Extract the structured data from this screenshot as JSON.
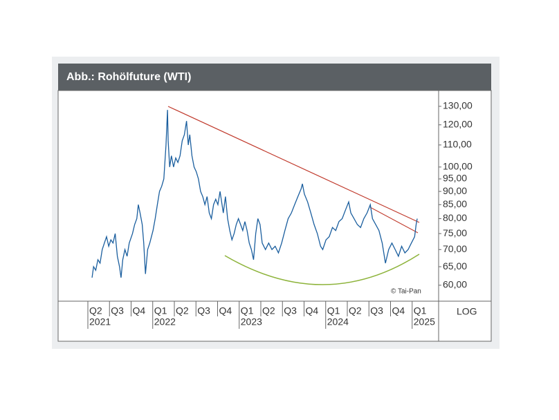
{
  "chart_data": {
    "type": "line",
    "title": "Abb.: Rohölfuture (WTI)",
    "source": "© Tai-Pan",
    "scale_label": "LOG",
    "log_scale": true,
    "grid": false,
    "xlim": [
      -1.44,
      16.16
    ],
    "xticks": [
      {
        "value": 0,
        "label": "Q2"
      },
      {
        "value": 1,
        "label": "Q3"
      },
      {
        "value": 2,
        "label": "Q4"
      },
      {
        "value": 3,
        "label": "Q1"
      },
      {
        "value": 4,
        "label": "Q2"
      },
      {
        "value": 5,
        "label": "Q3"
      },
      {
        "value": 6,
        "label": "Q4"
      },
      {
        "value": 7,
        "label": "Q1"
      },
      {
        "value": 8,
        "label": "Q2"
      },
      {
        "value": 9,
        "label": "Q3"
      },
      {
        "value": 10,
        "label": "Q4"
      },
      {
        "value": 11,
        "label": "Q1"
      },
      {
        "value": 12,
        "label": "Q2"
      },
      {
        "value": 13,
        "label": "Q3"
      },
      {
        "value": 14,
        "label": "Q4"
      },
      {
        "value": 15,
        "label": "Q1"
      }
    ],
    "years": [
      {
        "value": 0,
        "label": "2021"
      },
      {
        "value": 3,
        "label": "2022"
      },
      {
        "value": 7,
        "label": "2023"
      },
      {
        "value": 11,
        "label": "2024"
      },
      {
        "value": 15,
        "label": "2025"
      }
    ],
    "ylim": [
      56,
      139.2
    ],
    "yticks": [
      {
        "value": 60,
        "label": "60,00"
      },
      {
        "value": 65,
        "label": "65,00"
      },
      {
        "value": 70,
        "label": "70,00"
      },
      {
        "value": 75,
        "label": "75,00"
      },
      {
        "value": 80,
        "label": "80,00"
      },
      {
        "value": 85,
        "label": "85,00"
      },
      {
        "value": 90,
        "label": "90,00"
      },
      {
        "value": 95,
        "label": "95,00"
      },
      {
        "value": 100,
        "label": "100,00"
      },
      {
        "value": 110,
        "label": "110,00"
      },
      {
        "value": 120,
        "label": "120,00"
      },
      {
        "value": 130,
        "label": "130,00"
      }
    ],
    "x": [
      0.13,
      0.2,
      0.3,
      0.4,
      0.5,
      0.6,
      0.7,
      0.8,
      0.9,
      1.0,
      1.1,
      1.2,
      1.3,
      1.4,
      1.47,
      1.55,
      1.65,
      1.75,
      1.85,
      2.0,
      2.1,
      2.2,
      2.27,
      2.35,
      2.45,
      2.52,
      2.6,
      2.7,
      2.8,
      2.95,
      3.05,
      3.15,
      3.25,
      3.35,
      3.45,
      3.55,
      3.62,
      3.65,
      3.72,
      3.8,
      3.9,
      4.0,
      4.1,
      4.2,
      4.3,
      4.4,
      4.5,
      4.58,
      4.65,
      4.75,
      4.85,
      4.95,
      5.05,
      5.15,
      5.25,
      5.35,
      5.45,
      5.55,
      5.65,
      5.75,
      5.85,
      5.95,
      6.05,
      6.2,
      6.3,
      6.4,
      6.5,
      6.6,
      6.7,
      6.8,
      6.9,
      7.0,
      7.1,
      7.2,
      7.3,
      7.4,
      7.5,
      7.6,
      7.7,
      7.8,
      7.9,
      8.0,
      8.15,
      8.3,
      8.45,
      8.6,
      8.75,
      8.9,
      9.05,
      9.2,
      9.35,
      9.5,
      9.65,
      9.8,
      9.86,
      9.95,
      10.1,
      10.25,
      10.4,
      10.55,
      10.7,
      10.8,
      10.95,
      11.1,
      11.25,
      11.4,
      11.55,
      11.7,
      11.85,
      12.0,
      12.1,
      12.25,
      12.4,
      12.55,
      12.7,
      12.85,
      13.0,
      13.1,
      13.25,
      13.4,
      13.55,
      13.7,
      13.85,
      14.0,
      14.15,
      14.3,
      14.45,
      14.6,
      14.75,
      14.9,
      15.05,
      15.12,
      15.17
    ],
    "series": [
      {
        "name": "WTI",
        "color": "#1a5e9e",
        "values": [
          62,
          65,
          64,
          67,
          66,
          70,
          72,
          74,
          71,
          73,
          72,
          75,
          68,
          65,
          62,
          67,
          70,
          68,
          72,
          75,
          78,
          80,
          85,
          82,
          78,
          72,
          63,
          70,
          72,
          76,
          80,
          85,
          90,
          92,
          95,
          110,
          128,
          112,
          100,
          105,
          100,
          104,
          102,
          105,
          112,
          115,
          122,
          110,
          115,
          105,
          100,
          98,
          95,
          90,
          88,
          85,
          88,
          82,
          80,
          85,
          87,
          85,
          90,
          82,
          88,
          80,
          76,
          73,
          75,
          78,
          80,
          78,
          76,
          79,
          76,
          72,
          70,
          67,
          75,
          80,
          78,
          72,
          70,
          72,
          70,
          71,
          69,
          72,
          76,
          80,
          82,
          85,
          88,
          91,
          93,
          89,
          86,
          82,
          78,
          75,
          71,
          70,
          73,
          74,
          77,
          76,
          79,
          80,
          83,
          86,
          82,
          80,
          78,
          77,
          80,
          82,
          85,
          80,
          78,
          76,
          72,
          66,
          70,
          72,
          70,
          68,
          71,
          69,
          70,
          72,
          74,
          78,
          80
        ]
      }
    ]
  }
}
